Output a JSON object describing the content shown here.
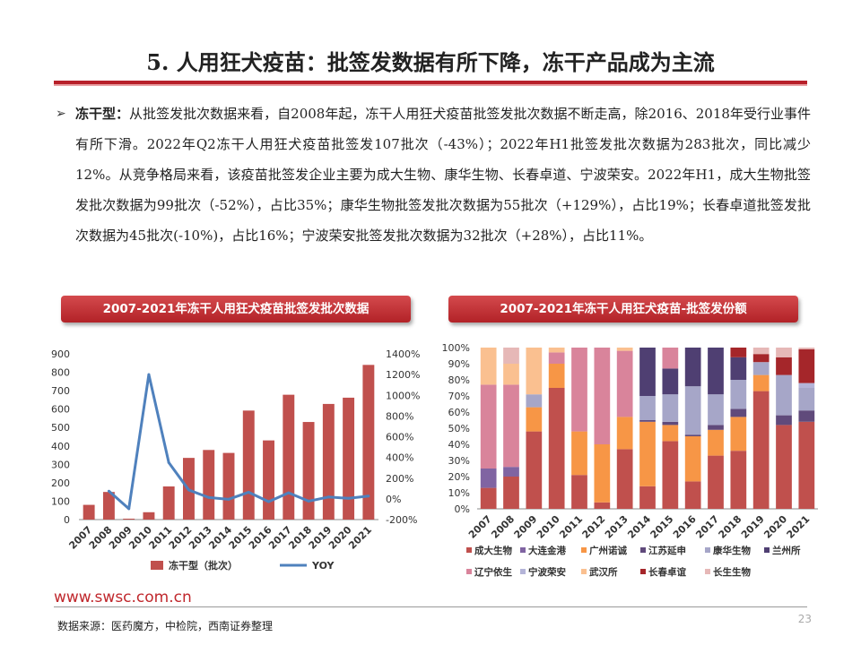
{
  "page": {
    "title": "5. 人用狂犬疫苗：批签发数据有所下降，冻干产品成为主流",
    "bullet_mark": "➢",
    "bullet_head": "冻干型：",
    "bullet_body": "从批签发批次数据来看，自2008年起，冻干人用狂犬疫苗批签发批次数据不断走高，除2016、2018年受行业事件有所下滑。2022年Q2冻干人用狂犬疫苗批签发107批次（-43%）；2022年H1批签发批次数据为283批次，同比减少12%。从竞争格局来看，该疫苗批签发企业主要为成大生物、康华生物、长春卓道、宁波荣安。2022年H1，成大生物批签发批次数据为99批次（-52%），占比35%；康华生物批签发批次数据为55批次（+129%），占比19%；长春卓道批签发批次数据为45批次(-10%)，占比16%；宁波荣安批签发批次数据为32批次（+28%），占比11%。",
    "url": "www.swsc.com.cn",
    "page_number": "23",
    "source": "数据来源：医药魔方，中检院，西南证券整理"
  },
  "chart_data": [
    {
      "type": "bar",
      "title": "2007-2021年冻干人用狂犬疫苗批签发批次数据",
      "categories": [
        "2007",
        "2008",
        "2009",
        "2010",
        "2011",
        "2012",
        "2013",
        "2014",
        "2015",
        "2016",
        "2017",
        "2018",
        "2019",
        "2020",
        "2021"
      ],
      "series": [
        {
          "name": "冻干型（批次）",
          "kind": "bar",
          "axis": "left",
          "color": "#c0504d",
          "values": [
            80,
            150,
            5,
            40,
            180,
            335,
            378,
            362,
            592,
            430,
            678,
            530,
            628,
            662,
            840
          ]
        },
        {
          "name": "YOY",
          "kind": "line",
          "axis": "right",
          "color": "#4f81bd",
          "values": [
            null,
            75,
            -95,
            1200,
            350,
            86,
            13,
            -4,
            64,
            -27,
            58,
            -22,
            18,
            5,
            27
          ]
        }
      ],
      "ylim_left": [
        0,
        900
      ],
      "ylim_right": [
        -200,
        1400
      ],
      "left_ticks": [
        "0",
        "100",
        "200",
        "300",
        "400",
        "500",
        "600",
        "700",
        "800",
        "900"
      ],
      "right_ticks": [
        "-200%",
        "0%",
        "200%",
        "400%",
        "600%",
        "800%",
        "1000%",
        "1200%",
        "1400%"
      ],
      "legend": "bottom",
      "grid": false
    },
    {
      "type": "bar",
      "stacked": true,
      "title": "2007-2021年冻干人用狂犬疫苗-批签发份额",
      "categories": [
        "2007",
        "2008",
        "2009",
        "2010",
        "2011",
        "2012",
        "2013",
        "2014",
        "2015",
        "2016",
        "2017",
        "2018",
        "2019",
        "2020",
        "2021"
      ],
      "ylim": [
        0,
        100
      ],
      "y_ticks": [
        "0%",
        "10%",
        "20%",
        "30%",
        "40%",
        "50%",
        "60%",
        "70%",
        "80%",
        "90%",
        "100%"
      ],
      "series": [
        {
          "name": "成大生物",
          "color": "#c0504d",
          "values": [
            13,
            20,
            48,
            75,
            21,
            4,
            37,
            14,
            42,
            17,
            33,
            36,
            73,
            52,
            54
          ]
        },
        {
          "name": "大连金港",
          "color": "#8064a2",
          "values": [
            12,
            6,
            0,
            0,
            0,
            0,
            0,
            0,
            0,
            0,
            0,
            0,
            0,
            0,
            0
          ]
        },
        {
          "name": "广州诺诚",
          "color": "#f79646",
          "values": [
            0,
            0,
            15,
            15,
            27,
            36,
            20,
            40,
            10,
            28,
            16,
            21,
            10,
            0,
            0
          ]
        },
        {
          "name": "江苏延申",
          "color": "#604a7b",
          "values": [
            0,
            0,
            0,
            0,
            0,
            0,
            0,
            1,
            2,
            1,
            3,
            5,
            0,
            6,
            7
          ]
        },
        {
          "name": "康华生物",
          "color": "#a6a6c8",
          "values": [
            0,
            0,
            8,
            0,
            0,
            0,
            0,
            15,
            17,
            30,
            19,
            18,
            8,
            25,
            14
          ]
        },
        {
          "name": "兰州所",
          "color": "#4f3f72",
          "values": [
            0,
            0,
            0,
            0,
            0,
            0,
            0,
            30,
            16,
            24,
            29,
            14,
            0,
            0,
            0
          ]
        },
        {
          "name": "辽宁依生",
          "color": "#d9849b",
          "values": [
            52,
            51,
            0,
            7,
            52,
            60,
            41,
            0,
            13,
            0,
            0,
            0,
            0,
            0,
            0
          ]
        },
        {
          "name": "宁波荣安",
          "color": "#b4b4d8",
          "values": [
            0,
            0,
            0,
            0,
            0,
            0,
            0,
            0,
            0,
            0,
            0,
            0,
            0,
            0,
            3
          ]
        },
        {
          "name": "武汉所",
          "color": "#fac090",
          "values": [
            23,
            13,
            29,
            3,
            0,
            0,
            2,
            0,
            0,
            0,
            0,
            0,
            0,
            0,
            0
          ]
        },
        {
          "name": "长春卓谊",
          "color": "#a5262a",
          "values": [
            0,
            0,
            0,
            0,
            0,
            0,
            0,
            0,
            0,
            0,
            0,
            6,
            5,
            11,
            21
          ]
        },
        {
          "name": "长生生物",
          "color": "#e6b8b7",
          "values": [
            0,
            10,
            0,
            0,
            0,
            0,
            0,
            0,
            0,
            0,
            0,
            0,
            4,
            6,
            1
          ]
        }
      ],
      "legend": "bottom",
      "grid": false
    }
  ]
}
